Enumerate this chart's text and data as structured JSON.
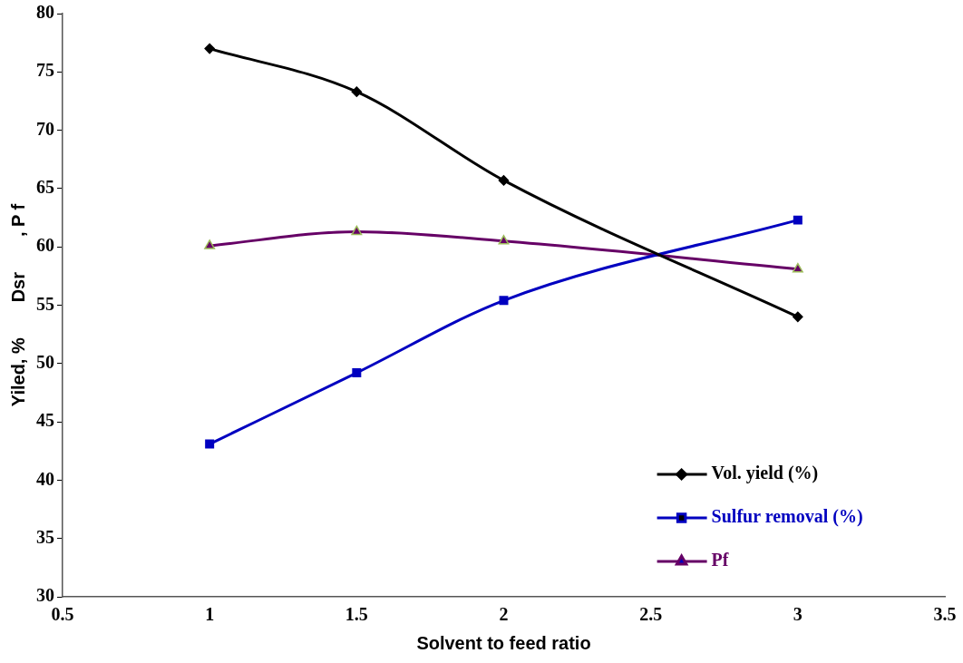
{
  "chart_data": {
    "type": "line",
    "xlabel": "Solvent to feed ratio",
    "ylabel": "Yiled, %       Dsr       , P f",
    "xlim": [
      0.5,
      3.5
    ],
    "xticks": [
      0.5,
      1,
      1.5,
      2,
      2.5,
      3,
      3.5
    ],
    "ylim": [
      30,
      80
    ],
    "yticks": [
      30,
      35,
      40,
      45,
      50,
      55,
      60,
      65,
      70,
      75,
      80
    ],
    "grid": false,
    "legend": "bottom right",
    "line_style": "solid",
    "series": [
      {
        "name": "Vol. yield (%)",
        "color": "#000000",
        "marker": "diamond",
        "x": [
          1,
          1.5,
          2,
          3
        ],
        "values": [
          77,
          73.3,
          65.7,
          54
        ]
      },
      {
        "name": "Sulfur removal (%)",
        "color": "#0000c0",
        "marker": "square",
        "x": [
          1,
          1.5,
          2,
          3
        ],
        "values": [
          43.1,
          49.2,
          55.4,
          62.3
        ]
      },
      {
        "name": "Pf",
        "color": "#660066",
        "marker": "triangle",
        "x": [
          1,
          1.5,
          2,
          3
        ],
        "values": [
          60.1,
          61.3,
          60.5,
          58.1
        ]
      }
    ]
  }
}
